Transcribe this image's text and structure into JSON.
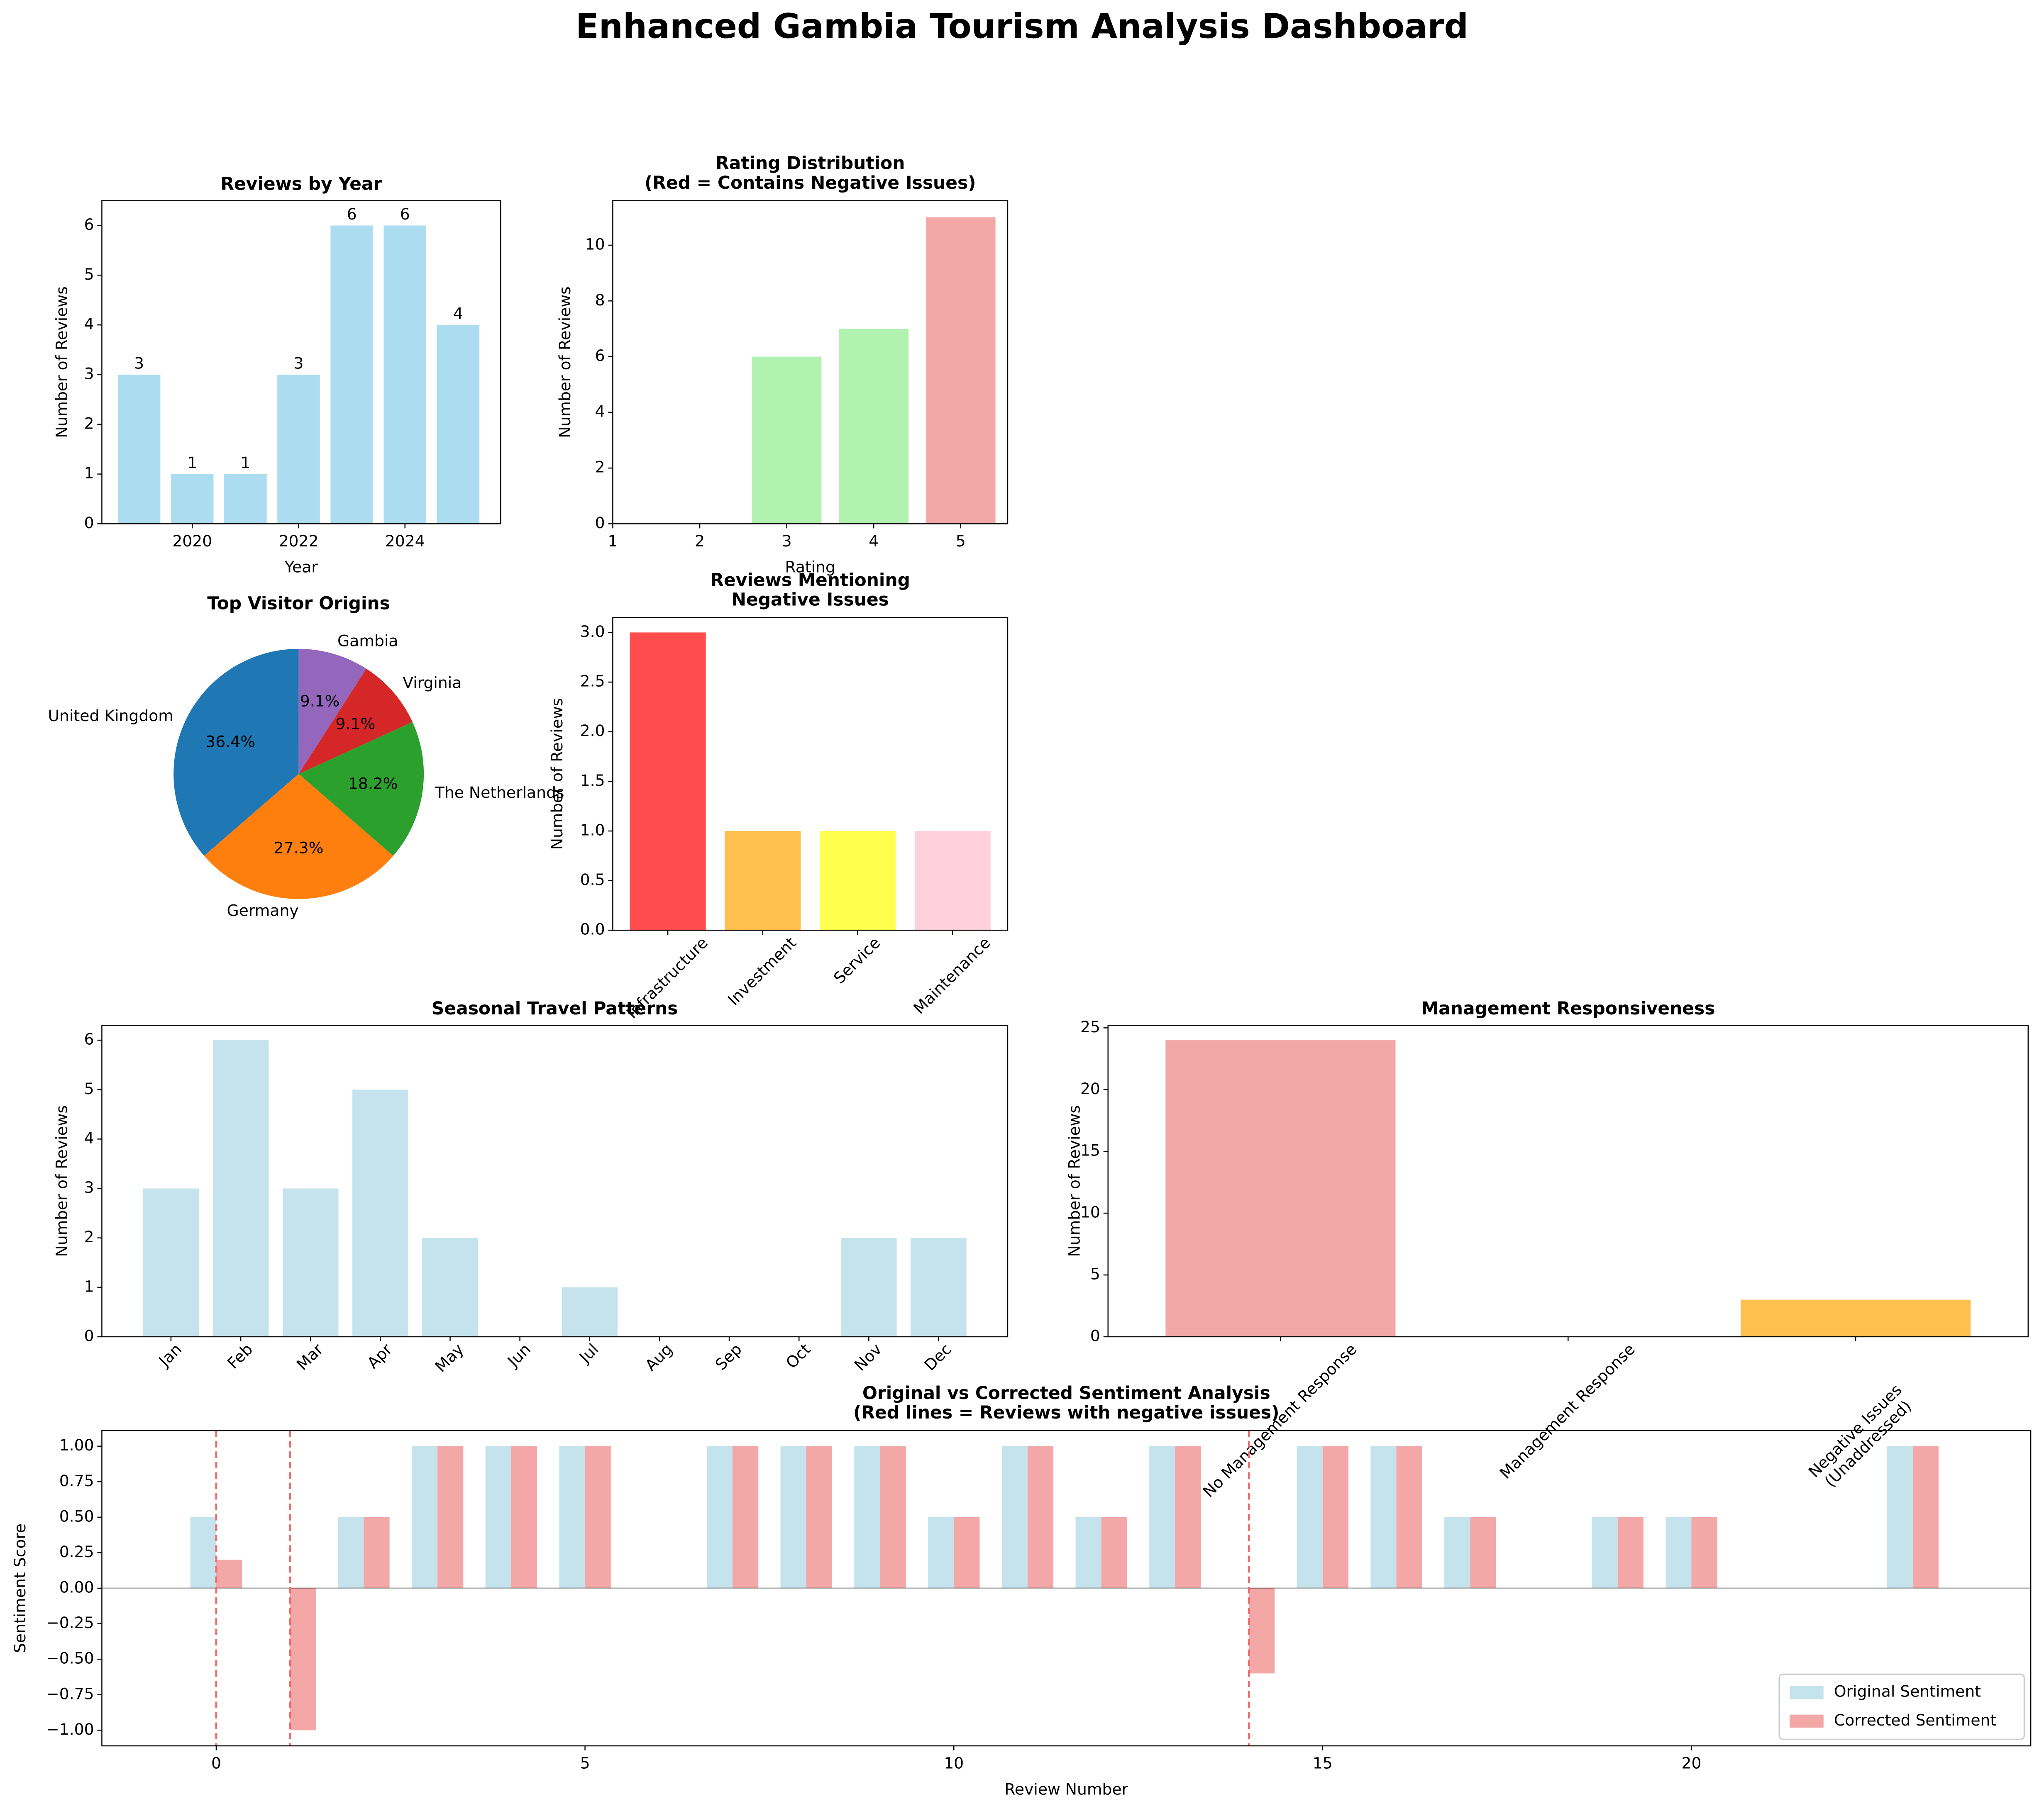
{
  "title": "Enhanced Gambia Tourism Analysis Dashboard",
  "chart_data": [
    {
      "type": "bar",
      "title": "Reviews by Year",
      "xlabel": "Year",
      "ylabel": "Number of Reviews",
      "x": [
        2019,
        2020,
        2021,
        2022,
        2023,
        2024,
        2025
      ],
      "values": [
        3,
        1,
        1,
        3,
        6,
        6,
        4
      ],
      "color": "#acdcef",
      "xlim": [
        2018.3,
        2025.8
      ],
      "xticks": [
        2020,
        2022,
        2024
      ],
      "ylim": [
        0,
        6.5
      ],
      "yticks": [
        0,
        1,
        2,
        3,
        4,
        5,
        6
      ],
      "show_values": true
    },
    {
      "type": "bar",
      "title": [
        "Rating Distribution",
        "(Red = Contains Negative Issues)"
      ],
      "xlabel": "Rating",
      "ylabel": "Number of Reviews",
      "x": [
        1,
        2,
        3,
        4,
        5
      ],
      "values": [
        0,
        0,
        6,
        7,
        11
      ],
      "colors": [
        "#b1f2b1",
        "#b1f2b1",
        "#b1f2b1",
        "#b1f2b1",
        "#f3a7a7"
      ],
      "xlim": [
        1,
        5.54
      ],
      "xticks": [
        1,
        2,
        3,
        4,
        5
      ],
      "ylim": [
        0,
        11.6
      ],
      "yticks": [
        0,
        2,
        4,
        6,
        8,
        10
      ]
    },
    {
      "type": "pie",
      "title": "Top Visitor Origins",
      "labels": [
        "United Kingdom",
        "Germany",
        "The Netherlands",
        "Virginia",
        "Gambia"
      ],
      "values": [
        36.4,
        27.3,
        18.2,
        9.1,
        9.1
      ],
      "value_labels": [
        "36.4%",
        "27.3%",
        "18.2%",
        "9.1%",
        "9.1%"
      ],
      "colors": [
        "#1f77b4",
        "#ff7f0e",
        "#2ca02c",
        "#d62728",
        "#9467bd"
      ]
    },
    {
      "type": "bar",
      "title": [
        "Reviews Mentioning",
        "Negative Issues"
      ],
      "ylabel": "Number of Reviews",
      "categories": [
        "Infrastructure",
        "Investment",
        "Service",
        "Maintenance"
      ],
      "values": [
        3,
        1,
        1,
        1
      ],
      "colors": [
        "#ff4d4d",
        "#ffc04d",
        "#ffff4d",
        "#ffd1dc"
      ],
      "xtick_rotation": 45,
      "ylim": [
        0,
        3.15
      ],
      "yticks": [
        {
          "value": 0,
          "label": "0.0"
        },
        {
          "value": 0.5,
          "label": "0.5"
        },
        {
          "value": 1,
          "label": "1.0"
        },
        {
          "value": 1.5,
          "label": "1.5"
        },
        {
          "value": 2,
          "label": "2.0"
        },
        {
          "value": 2.5,
          "label": "2.5"
        },
        {
          "value": 3,
          "label": "3.0"
        }
      ]
    },
    {
      "type": "bar",
      "title": "Seasonal Travel Patterns",
      "ylabel": "Number of Reviews",
      "categories": [
        "Jan",
        "Feb",
        "Mar",
        "Apr",
        "May",
        "Jun",
        "Jul",
        "Aug",
        "Sep",
        "Oct",
        "Nov",
        "Dec"
      ],
      "values": [
        3,
        6,
        3,
        5,
        2,
        0,
        1,
        0,
        0,
        0,
        2,
        2
      ],
      "color": "#c5e3ec",
      "xtick_rotation": 45,
      "ylim": [
        0,
        6.3
      ],
      "yticks": [
        0,
        1,
        2,
        3,
        4,
        5,
        6
      ]
    },
    {
      "type": "bar",
      "title": "Management Responsiveness",
      "ylabel": "Number of Reviews",
      "categories": [
        "No Management Response",
        "Management Response",
        [
          "Negative Issues",
          "(Unaddressed)"
        ]
      ],
      "values": [
        24,
        0,
        3
      ],
      "colors": [
        "#f3a7a7",
        "#b1f2b1",
        "#ffc04d"
      ],
      "xtick_rotation": 45,
      "ylim": [
        0,
        25.2
      ],
      "yticks": [
        0,
        5,
        10,
        15,
        20,
        25
      ]
    },
    {
      "type": "grouped_bar",
      "title": [
        "Original vs Corrected Sentiment Analysis",
        "(Red lines = Reviews with negative issues)"
      ],
      "xlabel": "Review Number",
      "ylabel": "Sentiment Score",
      "x": [
        0,
        1,
        2,
        3,
        4,
        5,
        6,
        7,
        8,
        9,
        10,
        11,
        12,
        13,
        14,
        15,
        16,
        17,
        18,
        19,
        20,
        21,
        22,
        23
      ],
      "series": [
        {
          "name": "Original Sentiment",
          "color": "#c5e3ec",
          "values": [
            0.5,
            0,
            0.5,
            1,
            1,
            1,
            0,
            1,
            1,
            1,
            0.5,
            1,
            0.5,
            1,
            0,
            1,
            1,
            0.5,
            0,
            0.5,
            0.5,
            0,
            0,
            1
          ]
        },
        {
          "name": "Corrected Sentiment",
          "color": "#f3a7a7",
          "values": [
            0.2,
            -1,
            0.5,
            1,
            1,
            1,
            0,
            1,
            1,
            1,
            0.5,
            1,
            0.5,
            1,
            -0.6,
            1,
            1,
            0.5,
            0,
            0.5,
            0.5,
            0,
            0,
            1
          ]
        }
      ],
      "negative_reviews": [
        0,
        1,
        14
      ],
      "negative_line_color": "#ef6b6b",
      "xlim": [
        -1.55,
        24.6
      ],
      "xticks": [
        0,
        5,
        10,
        15,
        20
      ],
      "ylim": [
        -1.11,
        1.11
      ],
      "yticks": [
        {
          "value": -1,
          "label": "−1.00"
        },
        {
          "value": -0.75,
          "label": "−0.75"
        },
        {
          "value": -0.5,
          "label": "−0.50"
        },
        {
          "value": -0.25,
          "label": "−0.25"
        },
        {
          "value": 0,
          "label": "0.00"
        },
        {
          "value": 0.25,
          "label": "0.25"
        },
        {
          "value": 0.5,
          "label": "0.50"
        },
        {
          "value": 0.75,
          "label": "0.75"
        },
        {
          "value": 1,
          "label": "1.00"
        }
      ],
      "legend": "lower right"
    }
  ]
}
